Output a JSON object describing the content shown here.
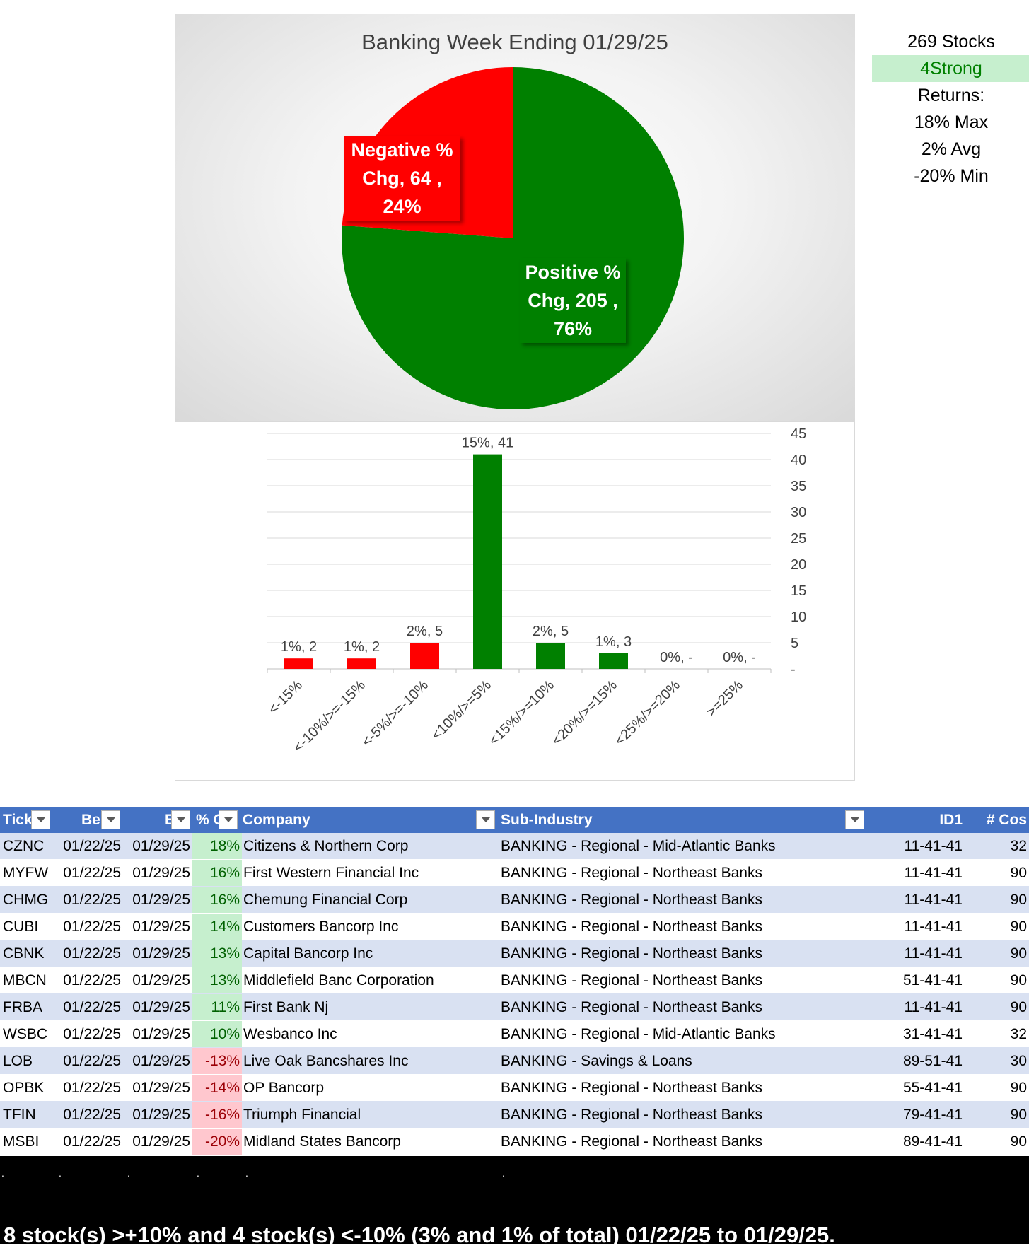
{
  "stats": {
    "stocks": "269 Stocks",
    "strong": "4Strong",
    "returns": "Returns:",
    "max": "18% Max",
    "avg": "2% Avg",
    "min": "-20% Min"
  },
  "chart_data": [
    {
      "type": "pie",
      "title": "Banking Week Ending 01/29/25",
      "slices": [
        {
          "name": "Positive % Chg",
          "value": 205,
          "percent": 76,
          "color": "#008000",
          "label": [
            "Positive %",
            "Chg,  205 ,",
            "76%"
          ]
        },
        {
          "name": "Negative % Chg",
          "value": 64,
          "percent": 24,
          "color": "#ff0000",
          "label": [
            "Negative %",
            "Chg,  64 ,",
            "24%"
          ]
        }
      ]
    },
    {
      "type": "bar",
      "categories": [
        "<-15%",
        "<-10%/>=-15%",
        "<-5%/>=-10%",
        "<10%/>=5%",
        "<15%/>=10%",
        "<20%/>=15%",
        "<25%/>=20%",
        ">=25%"
      ],
      "values": [
        2,
        2,
        5,
        41,
        5,
        3,
        0,
        0
      ],
      "data_labels": [
        "1%,  2",
        "1%,  2",
        "2%,  5",
        "15%,  41",
        "2%,  5",
        "1%,  3",
        "0%,  -",
        "0%,  -"
      ],
      "colors": [
        "#ff0000",
        "#ff0000",
        "#ff0000",
        "#008000",
        "#008000",
        "#008000",
        "#008000",
        "#008000"
      ],
      "ylim": [
        0,
        45
      ],
      "yticks": [
        "-",
        "5",
        "10",
        "15",
        "20",
        "25",
        "30",
        "35",
        "40",
        "45"
      ],
      "grid": true,
      "yaxis_side": "right"
    }
  ],
  "table": {
    "headers": [
      "Tick",
      "Be",
      "E",
      "% C",
      "Company",
      "Sub-Industry",
      "ID1",
      "# Cos"
    ],
    "rows": [
      {
        "tick": "CZNC",
        "begin": "01/22/25",
        "end": "01/29/25",
        "chg": "18%",
        "sign": "pos",
        "company": "Citizens & Northern Corp",
        "sub": "BANKING - Regional - Mid-Atlantic Banks",
        "id1": "11-41-41",
        "cos": "32"
      },
      {
        "tick": "MYFW",
        "begin": "01/22/25",
        "end": "01/29/25",
        "chg": "16%",
        "sign": "pos",
        "company": "First Western Financial Inc",
        "sub": "BANKING - Regional - Northeast Banks",
        "id1": "11-41-41",
        "cos": "90"
      },
      {
        "tick": "CHMG",
        "begin": "01/22/25",
        "end": "01/29/25",
        "chg": "16%",
        "sign": "pos",
        "company": "Chemung Financial Corp",
        "sub": "BANKING - Regional - Northeast Banks",
        "id1": "11-41-41",
        "cos": "90"
      },
      {
        "tick": "CUBI",
        "begin": "01/22/25",
        "end": "01/29/25",
        "chg": "14%",
        "sign": "pos",
        "company": "Customers Bancorp Inc",
        "sub": "BANKING - Regional - Northeast Banks",
        "id1": "11-41-41",
        "cos": "90"
      },
      {
        "tick": "CBNK",
        "begin": "01/22/25",
        "end": "01/29/25",
        "chg": "13%",
        "sign": "pos",
        "company": "Capital Bancorp Inc",
        "sub": "BANKING - Regional - Northeast Banks",
        "id1": "11-41-41",
        "cos": "90"
      },
      {
        "tick": "MBCN",
        "begin": "01/22/25",
        "end": "01/29/25",
        "chg": "13%",
        "sign": "pos",
        "company": "Middlefield Banc Corporation",
        "sub": "BANKING - Regional - Northeast Banks",
        "id1": "51-41-41",
        "cos": "90"
      },
      {
        "tick": "FRBA",
        "begin": "01/22/25",
        "end": "01/29/25",
        "chg": "11%",
        "sign": "pos",
        "company": "First Bank Nj",
        "sub": "BANKING - Regional - Northeast Banks",
        "id1": "11-41-41",
        "cos": "90"
      },
      {
        "tick": "WSBC",
        "begin": "01/22/25",
        "end": "01/29/25",
        "chg": "10%",
        "sign": "pos",
        "company": "Wesbanco Inc",
        "sub": "BANKING - Regional - Mid-Atlantic Banks",
        "id1": "31-41-41",
        "cos": "32"
      },
      {
        "tick": "LOB",
        "begin": "01/22/25",
        "end": "01/29/25",
        "chg": "-13%",
        "sign": "neg",
        "company": "Live Oak Bancshares Inc",
        "sub": "BANKING - Savings & Loans",
        "id1": "89-51-41",
        "cos": "30"
      },
      {
        "tick": "OPBK",
        "begin": "01/22/25",
        "end": "01/29/25",
        "chg": "-14%",
        "sign": "neg",
        "company": "OP Bancorp",
        "sub": "BANKING - Regional - Northeast Banks",
        "id1": "55-41-41",
        "cos": "90"
      },
      {
        "tick": "TFIN",
        "begin": "01/22/25",
        "end": "01/29/25",
        "chg": "-16%",
        "sign": "neg",
        "company": "Triumph Financial",
        "sub": "BANKING - Regional - Northeast Banks",
        "id1": "79-41-41",
        "cos": "90"
      },
      {
        "tick": "MSBI",
        "begin": "01/22/25",
        "end": "01/29/25",
        "chg": "-20%",
        "sign": "neg",
        "company": "Midland States Bancorp",
        "sub": "BANKING - Regional - Northeast Banks",
        "id1": "89-41-41",
        "cos": "90"
      }
    ]
  },
  "footer": {
    "dots": ".",
    "summary": "8 stock(s) >+10% and 4 stock(s) <-10% (3% and 1% of total) 01/22/25 to 01/29/25."
  }
}
